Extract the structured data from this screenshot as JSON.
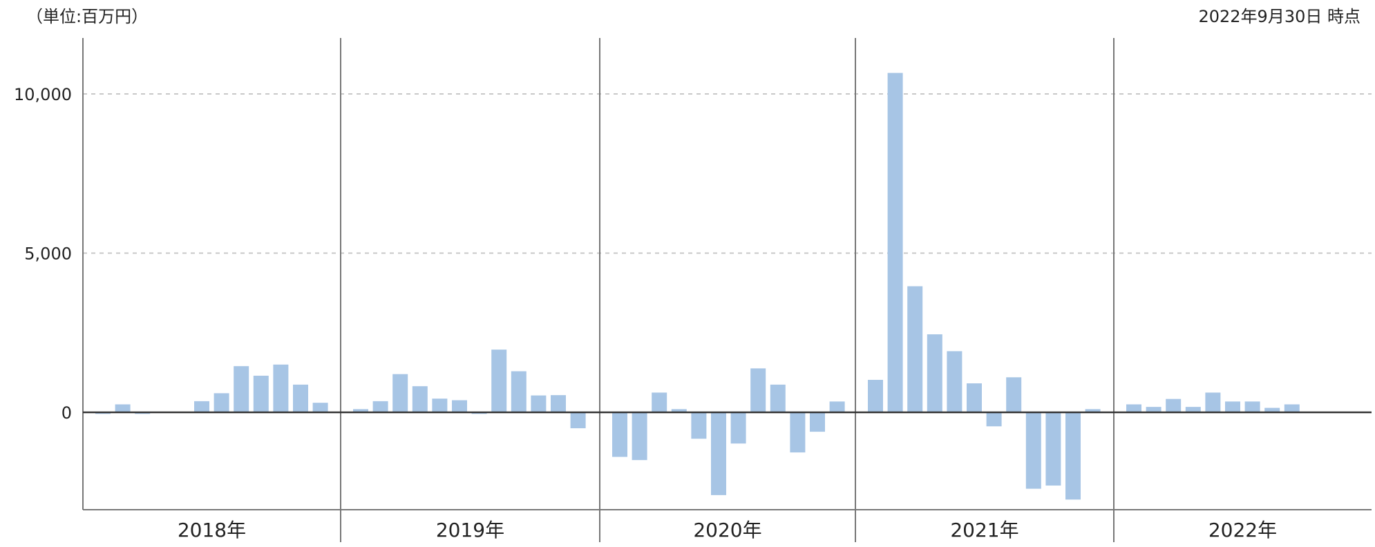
{
  "header": {
    "unit_label": "（単位:百万円）",
    "as_of_label": "2022年9月30日 時点"
  },
  "chart_data": {
    "type": "bar",
    "ylim": [
      -3000,
      11800
    ],
    "yticks": [
      0,
      5000,
      10000
    ],
    "ytick_labels": [
      "0",
      "5,000",
      "10,000"
    ],
    "grid": "horizontal dashed at 5,000 and 10,000",
    "bar_color": "#a7c5e5",
    "groups": [
      {
        "label": "2018年",
        "values": [
          -50,
          250,
          -50,
          0,
          0,
          350,
          600,
          1450,
          1150,
          1500,
          870,
          300
        ]
      },
      {
        "label": "2019年",
        "values": [
          100,
          350,
          1200,
          820,
          430,
          380,
          -50,
          1970,
          1290,
          530,
          540,
          -500
        ]
      },
      {
        "label": "2020年",
        "values": [
          -1400,
          -1500,
          620,
          100,
          -830,
          -2600,
          -980,
          1380,
          870,
          -1260,
          -610,
          340
        ]
      },
      {
        "label": "2021年",
        "values": [
          1020,
          10660,
          3960,
          2450,
          1920,
          910,
          -440,
          1100,
          -2400,
          -2300,
          -2740,
          100
        ]
      },
      {
        "label": "2022年",
        "values": [
          250,
          170,
          420,
          170,
          620,
          340,
          340,
          140,
          250
        ]
      }
    ]
  }
}
